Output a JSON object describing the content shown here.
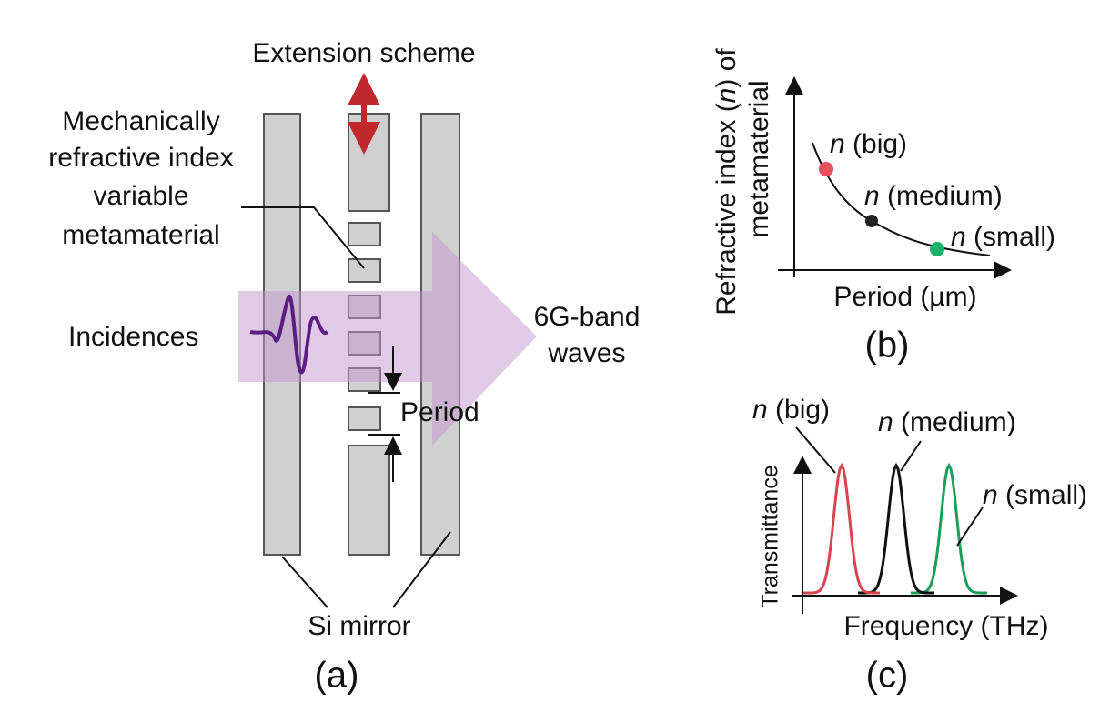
{
  "panel_a": {
    "caption": "(a)",
    "extension_label": "Extension scheme",
    "metamaterial_label": [
      "Mechanically",
      "refractive index",
      "variable",
      "metamaterial"
    ],
    "incidence_label": "Incidences",
    "output_label": [
      "6G-band",
      "waves"
    ],
    "period_label": "Period",
    "mirror_label": "Si mirror"
  },
  "panel_b": {
    "caption": "(b)",
    "y_axis_label": {
      "line1_before": "Refractive index (",
      "symbol": "n",
      "line1_after": ") of",
      "line2": "metamaterial"
    },
    "x_axis_label": "Period (µm)",
    "points": [
      {
        "symbol": "n",
        "label": " (big)"
      },
      {
        "symbol": "n",
        "label": " (medium)"
      },
      {
        "symbol": "n",
        "label": " (small)"
      }
    ]
  },
  "panel_c": {
    "caption": "(c)",
    "y_axis_label": "Transmittance",
    "x_axis_label": "Frequency (THz)",
    "peaks": [
      {
        "symbol": "n",
        "label": " (big)"
      },
      {
        "symbol": "n",
        "label": " (medium)"
      },
      {
        "symbol": "n",
        "label": " (small)"
      }
    ]
  }
}
